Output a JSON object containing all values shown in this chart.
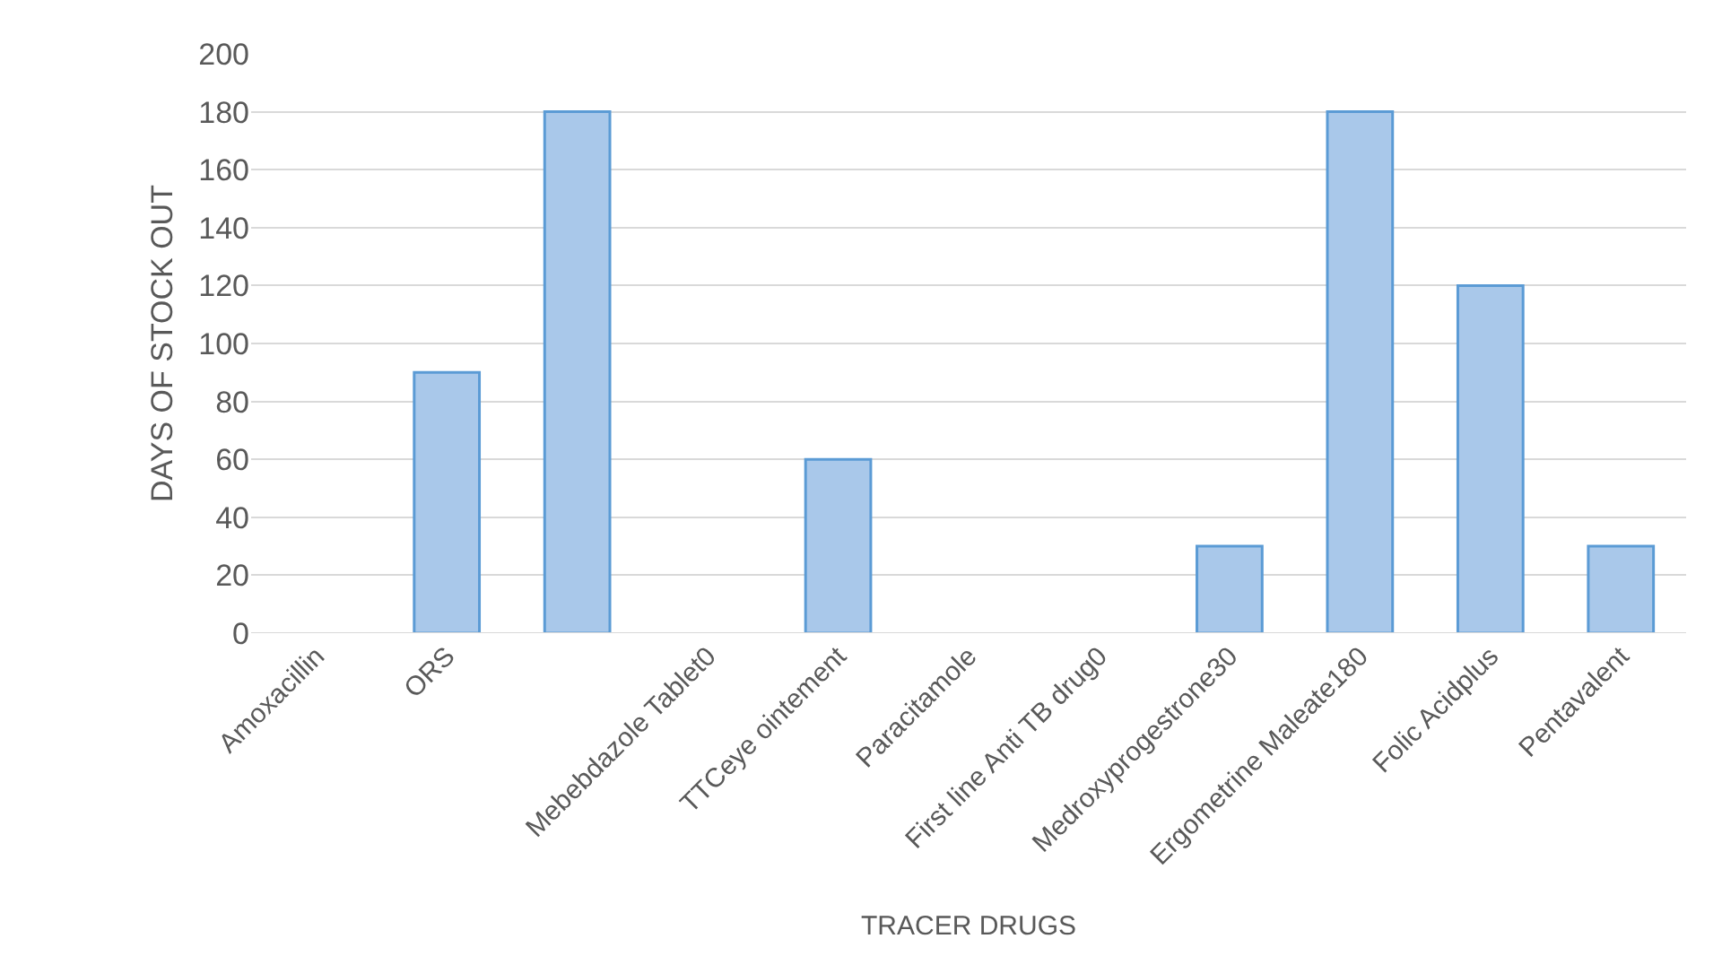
{
  "chart_data": {
    "type": "bar",
    "xlabel": "TRACER DRUGS",
    "ylabel": "DAYS OF STOCK OUT",
    "categories": [
      "Amoxacillin",
      "ORS",
      null,
      "Mebebdazole Tablet0",
      "TTCeye ointement",
      "Paracitamole",
      "First line Anti TB drug0",
      "Medroxyprogestrone30",
      "Ergometrine Maleate180",
      "Folic Acidplus",
      "Pentavalent"
    ],
    "values": [
      0,
      90,
      180,
      0,
      60,
      0,
      0,
      30,
      180,
      120,
      30
    ],
    "color": "#a9c8ea",
    "ylim": [
      0,
      200
    ],
    "yticks": [
      0,
      20,
      40,
      60,
      80,
      100,
      120,
      140,
      160,
      180,
      200
    ],
    "grid": "y"
  }
}
